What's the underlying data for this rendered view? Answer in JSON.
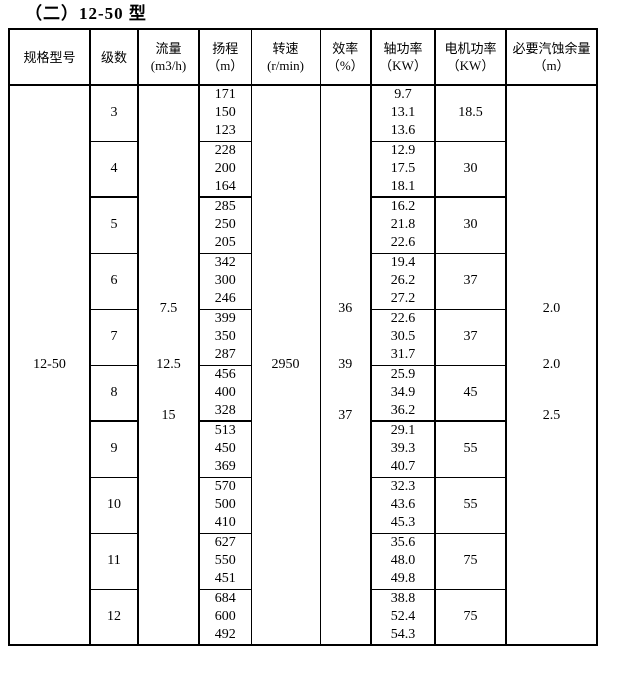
{
  "title": "（二）12-50 型",
  "table": {
    "columns": [
      {
        "label": "规格型号",
        "sub": ""
      },
      {
        "label": "级数",
        "sub": ""
      },
      {
        "label": "流量",
        "sub": "(m3/h)"
      },
      {
        "label": "扬程",
        "sub": "（m）"
      },
      {
        "label": "转速",
        "sub": "(r/min)"
      },
      {
        "label": "效率",
        "sub": "（%）"
      },
      {
        "label": "轴功率",
        "sub": "（KW）"
      },
      {
        "label": "电机功率",
        "sub": "（KW）"
      },
      {
        "label": "必要汽蚀余量",
        "sub": "（m）"
      }
    ],
    "model": "12-50",
    "flow_values": [
      "7.5",
      "12.5",
      "15"
    ],
    "speed": "2950",
    "efficiency_values": [
      "36",
      "39",
      "37"
    ],
    "npsh_values": [
      "2.0",
      "2.0",
      "2.5"
    ],
    "stack_positions": [
      "40%",
      "50%",
      "59.2%"
    ],
    "rows": [
      {
        "stage": "3",
        "head": [
          "171",
          "150",
          "123"
        ],
        "shaft_power": [
          "9.7",
          "13.1",
          "13.6"
        ],
        "motor_power": "18.5"
      },
      {
        "stage": "4",
        "head": [
          "228",
          "200",
          "164"
        ],
        "shaft_power": [
          "12.9",
          "17.5",
          "18.1"
        ],
        "motor_power": "30"
      },
      {
        "stage": "5",
        "head": [
          "285",
          "250",
          "205"
        ],
        "shaft_power": [
          "16.2",
          "21.8",
          "22.6"
        ],
        "motor_power": "30"
      },
      {
        "stage": "6",
        "head": [
          "342",
          "300",
          "246"
        ],
        "shaft_power": [
          "19.4",
          "26.2",
          "27.2"
        ],
        "motor_power": "37"
      },
      {
        "stage": "7",
        "head": [
          "399",
          "350",
          "287"
        ],
        "shaft_power": [
          "22.6",
          "30.5",
          "31.7"
        ],
        "motor_power": "37"
      },
      {
        "stage": "8",
        "head": [
          "456",
          "400",
          "328"
        ],
        "shaft_power": [
          "25.9",
          "34.9",
          "36.2"
        ],
        "motor_power": "45"
      },
      {
        "stage": "9",
        "head": [
          "513",
          "450",
          "369"
        ],
        "shaft_power": [
          "29.1",
          "39.3",
          "40.7"
        ],
        "motor_power": "55"
      },
      {
        "stage": "10",
        "head": [
          "570",
          "500",
          "410"
        ],
        "shaft_power": [
          "32.3",
          "43.6",
          "45.3"
        ],
        "motor_power": "55"
      },
      {
        "stage": "11",
        "head": [
          "627",
          "550",
          "451"
        ],
        "shaft_power": [
          "35.6",
          "48.0",
          "49.8"
        ],
        "motor_power": "75"
      },
      {
        "stage": "12",
        "head": [
          "684",
          "600",
          "492"
        ],
        "shaft_power": [
          "38.8",
          "52.4",
          "54.3"
        ],
        "motor_power": "75"
      }
    ],
    "thick_after_stages": [
      "4",
      "8"
    ]
  }
}
